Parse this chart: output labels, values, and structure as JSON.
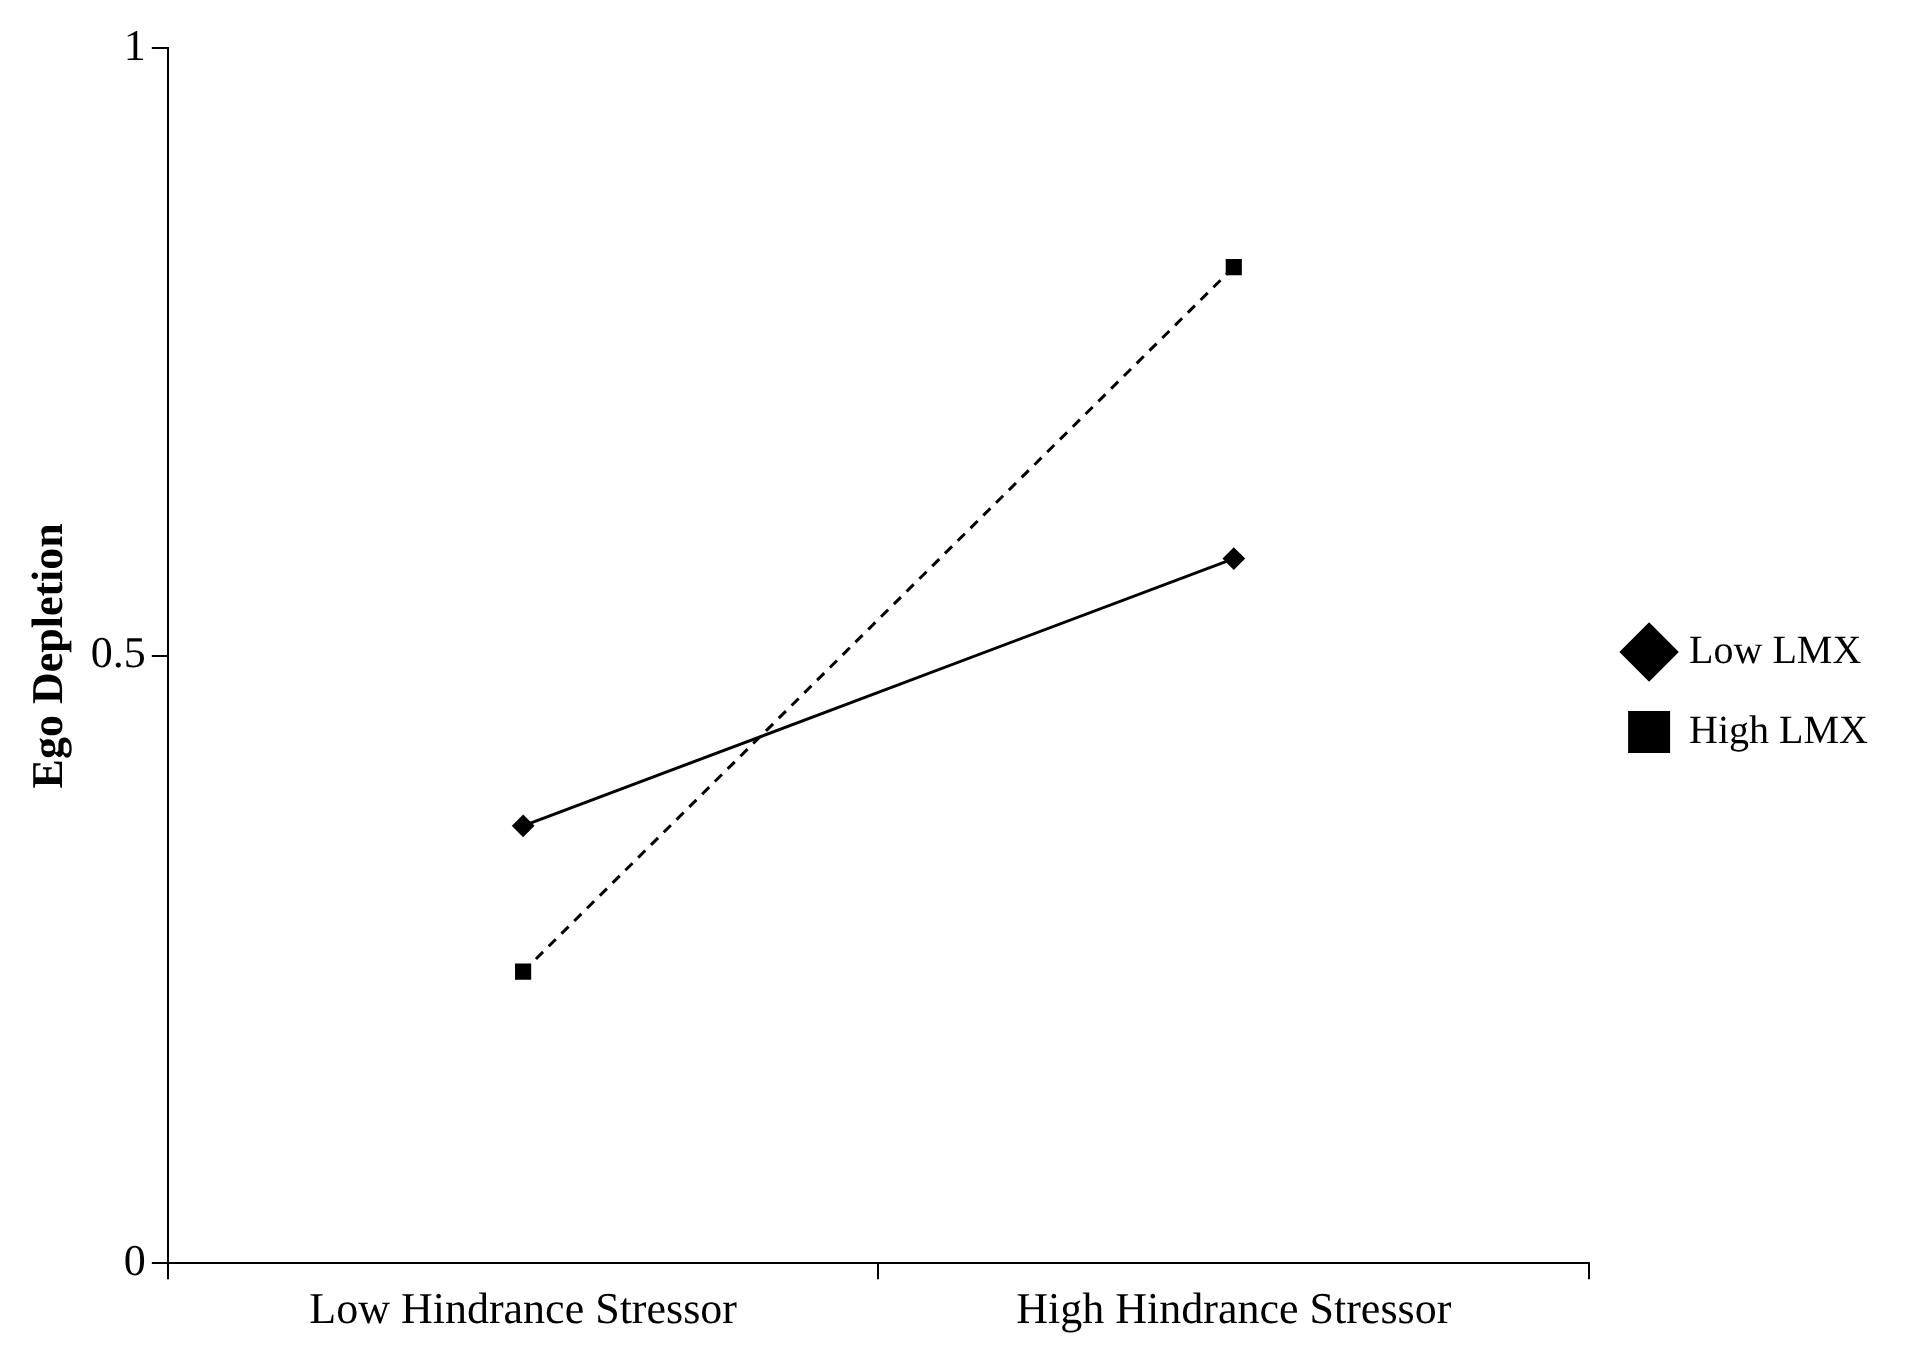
{
  "chart_data": {
    "type": "line",
    "ylabel": "Ego Depletion",
    "categories": [
      "Low Hindrance Stressor",
      "High Hindrance Stressor"
    ],
    "series": [
      {
        "name": "Low LMX",
        "color": "#000000",
        "values": [
          0.36,
          0.58
        ],
        "marker": "diamond",
        "line_style": "solid"
      },
      {
        "name": "High LMX",
        "color": "#000000",
        "values": [
          0.24,
          0.82
        ],
        "marker": "square",
        "line_style": "dashed"
      }
    ],
    "ylim": [
      0,
      1
    ],
    "yticks": [
      0,
      0.5,
      1
    ],
    "grid": false,
    "legend": "right"
  }
}
